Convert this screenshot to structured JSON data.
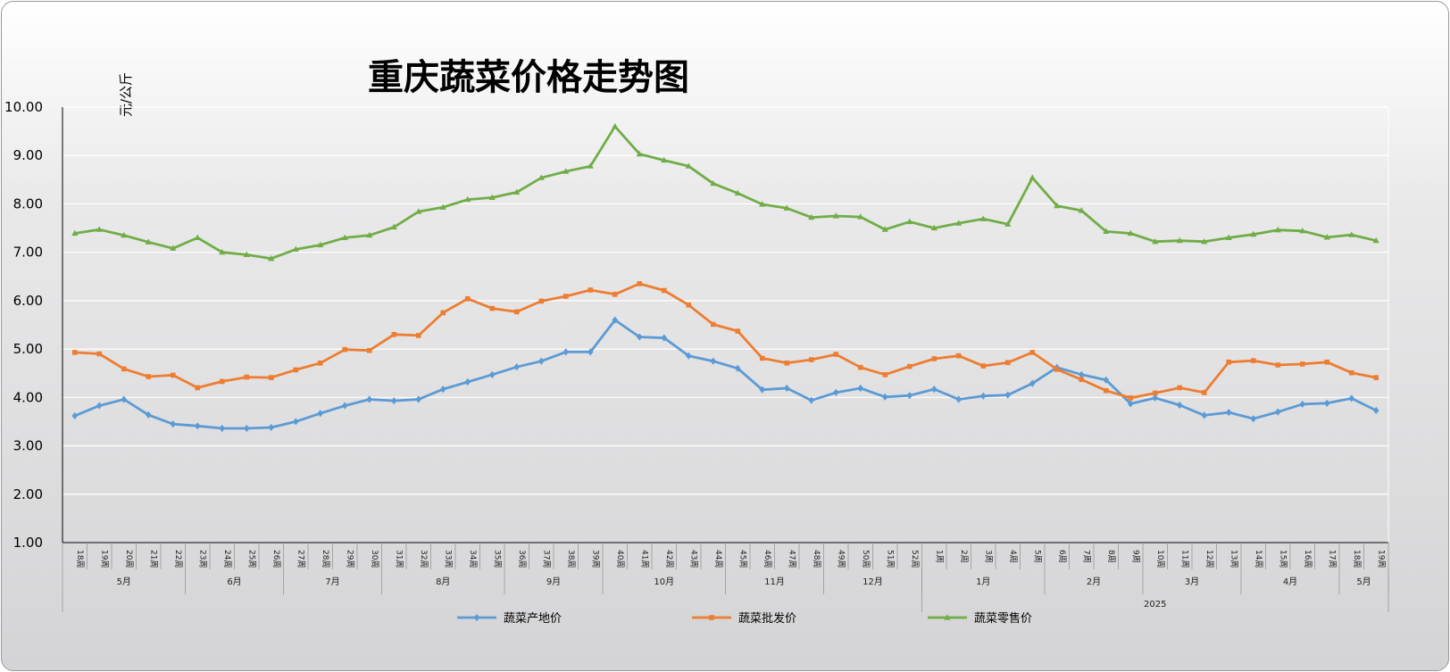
{
  "chart_data": {
    "type": "line",
    "title": "重庆蔬菜价格走势图",
    "ylabel": "元/公斤",
    "ylim": [
      1.0,
      10.0
    ],
    "yticks": [
      "1.00",
      "2.00",
      "3.00",
      "4.00",
      "5.00",
      "6.00",
      "7.00",
      "8.00",
      "9.00",
      "10.00"
    ],
    "grid": true,
    "legend_position": "bottom",
    "x": [
      "18周",
      "19周",
      "20周",
      "21周",
      "22周",
      "23周",
      "24周",
      "25周",
      "26周",
      "27周",
      "28周",
      "29周",
      "30周",
      "31周",
      "32周",
      "33周",
      "34周",
      "35周",
      "36周",
      "37周",
      "38周",
      "39周",
      "40周",
      "41周",
      "42周",
      "43周",
      "44周",
      "45周",
      "46周",
      "47周",
      "48周",
      "49周",
      "50周",
      "51周",
      "52周",
      "1周",
      "2周",
      "3周",
      "4周",
      "5周",
      "6周",
      "7周",
      "8周",
      "9周",
      "10周",
      "11周",
      "12周",
      "13周",
      "14周",
      "15周",
      "16周",
      "17周",
      "18周",
      "19周"
    ],
    "month_groups": [
      {
        "label": "5月",
        "count": 5
      },
      {
        "label": "6月",
        "count": 4
      },
      {
        "label": "7月",
        "count": 4
      },
      {
        "label": "8月",
        "count": 5
      },
      {
        "label": "9月",
        "count": 4
      },
      {
        "label": "10月",
        "count": 5
      },
      {
        "label": "11月",
        "count": 4
      },
      {
        "label": "12月",
        "count": 4
      },
      {
        "label": "1月",
        "count": 5
      },
      {
        "label": "2月",
        "count": 4
      },
      {
        "label": "3月",
        "count": 4
      },
      {
        "label": "4月",
        "count": 4
      },
      {
        "label": "5月",
        "count": 2
      }
    ],
    "year_groups": [
      {
        "label": "",
        "start": 0,
        "count": 35
      },
      {
        "label": "2025",
        "start": 35,
        "count": 19
      }
    ],
    "series": [
      {
        "name": "蔬菜产地价",
        "color": "#5b9bd5",
        "marker": "diamond",
        "values": [
          3.62,
          3.83,
          3.96,
          3.64,
          3.45,
          3.41,
          3.36,
          3.36,
          3.38,
          3.5,
          3.67,
          3.83,
          3.96,
          3.93,
          3.96,
          4.17,
          4.32,
          4.47,
          4.63,
          4.75,
          4.94,
          4.94,
          5.6,
          5.25,
          5.23,
          4.86,
          4.75,
          4.6,
          4.16,
          4.19,
          3.94,
          4.1,
          4.19,
          4.01,
          4.04,
          4.17,
          3.96,
          4.03,
          4.05,
          4.29,
          4.62,
          4.47,
          4.36,
          3.87,
          3.99,
          3.84,
          3.63,
          3.69,
          3.56,
          3.7,
          3.86,
          3.88,
          3.98,
          3.73
        ]
      },
      {
        "name": "蔬菜批发价",
        "color": "#ed7d31",
        "marker": "square",
        "values": [
          4.93,
          4.9,
          4.59,
          4.43,
          4.46,
          4.2,
          4.33,
          4.42,
          4.41,
          4.57,
          4.71,
          4.99,
          4.97,
          5.3,
          5.28,
          5.75,
          6.04,
          5.84,
          5.77,
          5.99,
          6.09,
          6.22,
          6.13,
          6.35,
          6.21,
          5.91,
          5.51,
          5.37,
          4.81,
          4.71,
          4.78,
          4.89,
          4.62,
          4.47,
          4.64,
          4.8,
          4.86,
          4.65,
          4.72,
          4.93,
          4.58,
          4.37,
          4.14,
          3.99,
          4.09,
          4.2,
          4.1,
          4.73,
          4.76,
          4.67,
          4.69,
          4.73,
          4.51,
          4.41
        ]
      },
      {
        "name": "蔬菜零售价",
        "color": "#70ad47",
        "marker": "triangle",
        "values": [
          7.39,
          7.47,
          7.35,
          7.21,
          7.08,
          7.3,
          7.0,
          6.95,
          6.87,
          7.06,
          7.15,
          7.3,
          7.35,
          7.52,
          7.84,
          7.93,
          8.09,
          8.13,
          8.24,
          8.54,
          8.67,
          8.78,
          9.6,
          9.03,
          8.9,
          8.78,
          8.42,
          8.22,
          7.99,
          7.91,
          7.72,
          7.75,
          7.73,
          7.47,
          7.63,
          7.5,
          7.6,
          7.69,
          7.58,
          8.54,
          7.96,
          7.86,
          7.43,
          7.39,
          7.22,
          7.24,
          7.22,
          7.3,
          7.37,
          7.46,
          7.44,
          7.31,
          7.36,
          7.24
        ]
      }
    ]
  }
}
